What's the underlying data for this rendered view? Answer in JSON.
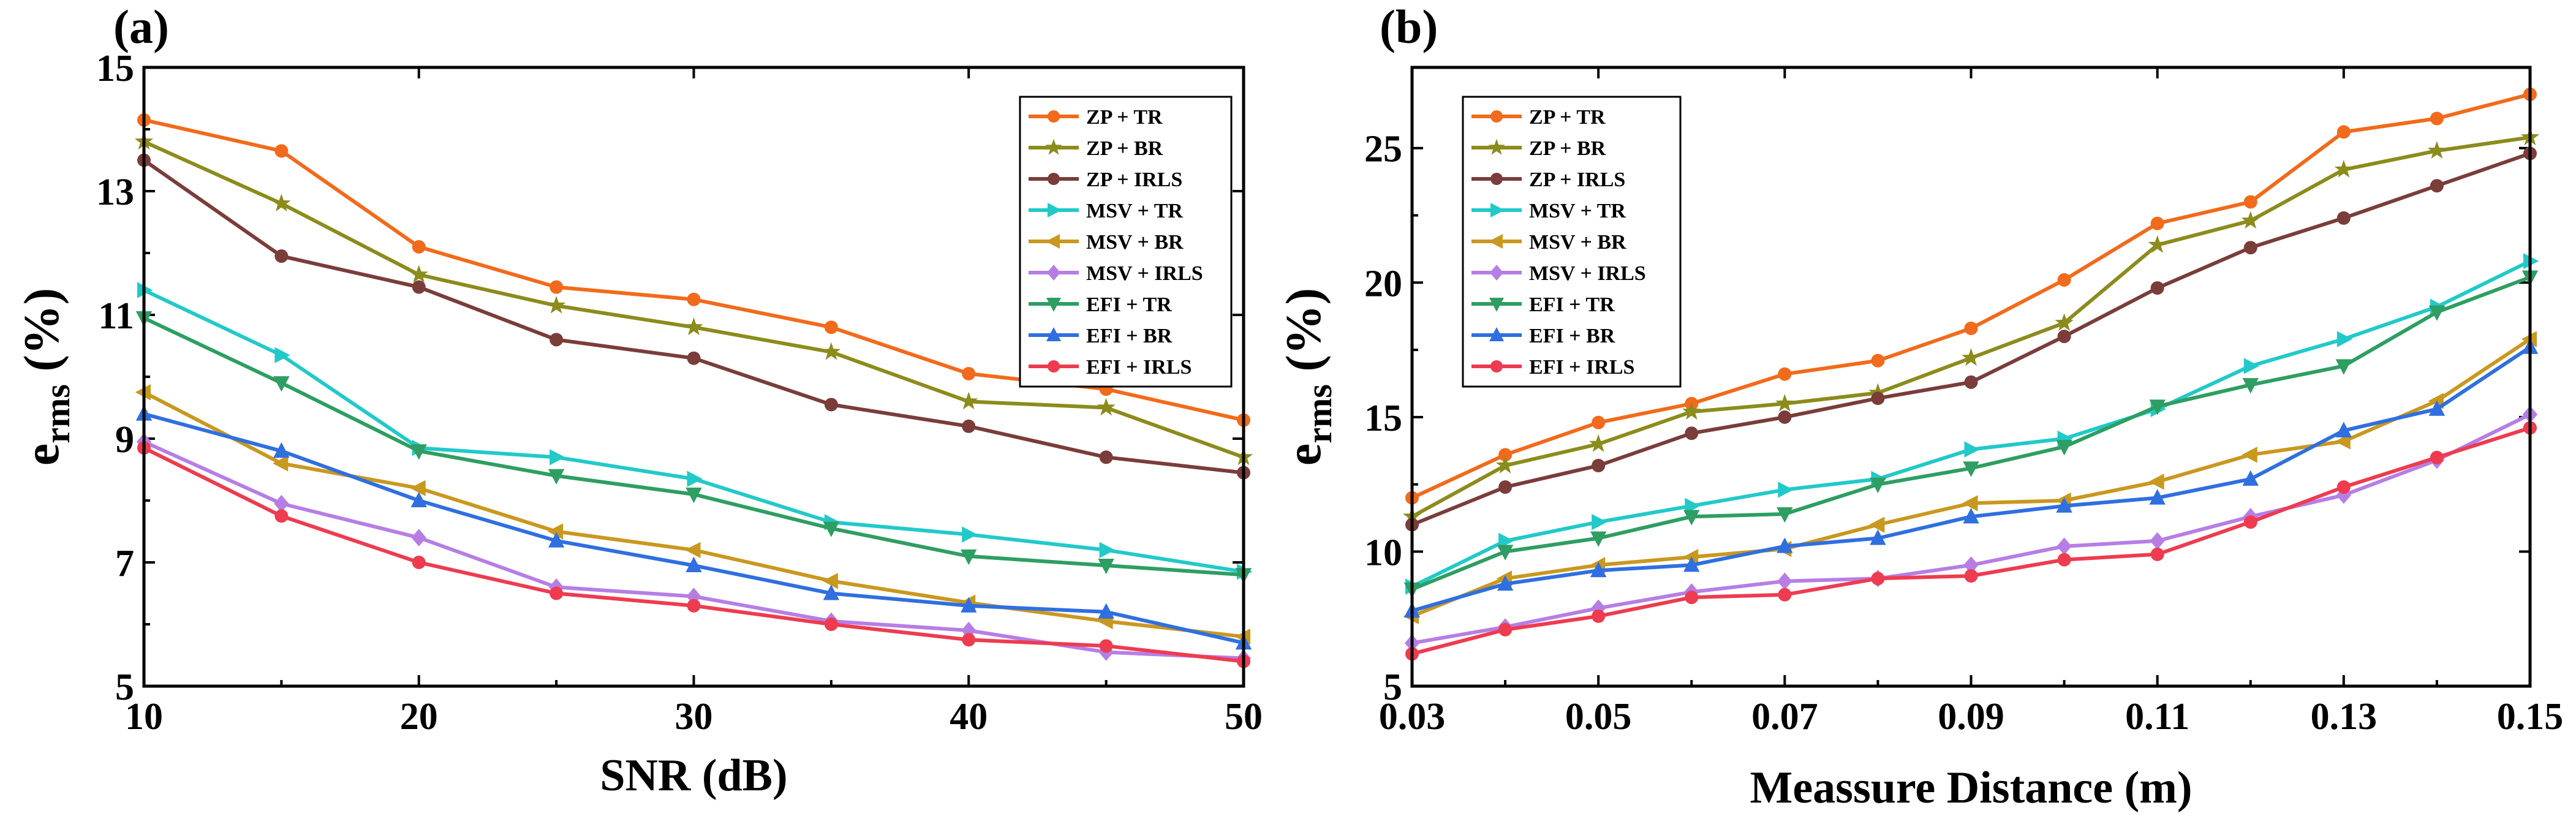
{
  "chart_data": [
    {
      "type": "line",
      "panel_label": "(a)",
      "xlabel": "SNR (dB)",
      "ylabel_main": "e",
      "ylabel_sub": "rms",
      "ylabel_unit": " (%)",
      "xlim": [
        10,
        50
      ],
      "ylim": [
        5,
        15
      ],
      "xticks": [
        "10",
        "20",
        "30",
        "40",
        "50"
      ],
      "xtick_values": [
        10,
        20,
        30,
        40,
        50
      ],
      "yticks": [
        "5",
        "7",
        "9",
        "11",
        "13",
        "15"
      ],
      "ytick_values": [
        5,
        7,
        9,
        11,
        13,
        15
      ],
      "x": [
        10,
        15,
        20,
        25,
        30,
        35,
        40,
        45,
        50
      ],
      "series": [
        {
          "name": "ZP + TR",
          "color": "#f26a1b",
          "marker": "circle",
          "values": [
            14.15,
            13.65,
            12.1,
            11.45,
            11.25,
            10.8,
            10.05,
            9.8,
            9.3
          ]
        },
        {
          "name": "ZP + BR",
          "color": "#8b8c1c",
          "marker": "star",
          "values": [
            13.8,
            12.8,
            11.65,
            11.15,
            10.8,
            10.4,
            9.6,
            9.5,
            8.7
          ]
        },
        {
          "name": "ZP + IRLS",
          "color": "#7a3d3a",
          "marker": "circle",
          "values": [
            13.5,
            11.95,
            11.45,
            10.6,
            10.3,
            9.55,
            9.2,
            8.7,
            8.45
          ]
        },
        {
          "name": "MSV + TR",
          "color": "#22c9c9",
          "marker": "tri-right",
          "values": [
            11.4,
            10.35,
            8.85,
            8.7,
            8.35,
            7.65,
            7.45,
            7.2,
            6.85
          ]
        },
        {
          "name": "MSV + BR",
          "color": "#c9981f",
          "marker": "tri-left",
          "values": [
            9.75,
            8.6,
            8.2,
            7.5,
            7.2,
            6.7,
            6.35,
            6.05,
            5.8
          ]
        },
        {
          "name": "MSV + IRLS",
          "color": "#b67ee5",
          "marker": "diamond",
          "values": [
            8.95,
            7.95,
            7.4,
            6.6,
            6.45,
            6.05,
            5.9,
            5.55,
            5.45
          ]
        },
        {
          "name": "EFI + TR",
          "color": "#2e9e62",
          "marker": "tri-down",
          "values": [
            10.95,
            9.9,
            8.8,
            8.4,
            8.1,
            7.55,
            7.1,
            6.95,
            6.8
          ]
        },
        {
          "name": "EFI + BR",
          "color": "#2f6fe0",
          "marker": "tri-up",
          "values": [
            9.4,
            8.8,
            8.0,
            7.35,
            6.95,
            6.5,
            6.3,
            6.2,
            5.7
          ]
        },
        {
          "name": "EFI + IRLS",
          "color": "#ee3b50",
          "marker": "circle",
          "values": [
            8.85,
            7.75,
            7.0,
            6.5,
            6.3,
            6.0,
            5.75,
            5.65,
            5.4
          ]
        }
      ]
    },
    {
      "type": "line",
      "panel_label": "(b)",
      "xlabel": "Meassure Distance (m)",
      "ylabel_main": "e",
      "ylabel_sub": "rms",
      "ylabel_unit": " (%)",
      "xlim": [
        0.03,
        0.15
      ],
      "ylim": [
        5,
        28
      ],
      "xticks": [
        "0.03",
        "0.05",
        "0.07",
        "0.09",
        "0.11",
        "0.13",
        "0.15"
      ],
      "xtick_values": [
        0.03,
        0.05,
        0.07,
        0.09,
        0.11,
        0.13,
        0.15
      ],
      "yticks": [
        "5",
        "10",
        "15",
        "20",
        "25"
      ],
      "ytick_values": [
        5,
        10,
        15,
        20,
        25
      ],
      "x": [
        0.03,
        0.04,
        0.05,
        0.06,
        0.07,
        0.08,
        0.09,
        0.1,
        0.11,
        0.12,
        0.13,
        0.14,
        0.15
      ],
      "series": [
        {
          "name": "ZP + TR",
          "color": "#f26a1b",
          "marker": "circle",
          "values": [
            12.0,
            13.6,
            14.8,
            15.5,
            16.6,
            17.1,
            18.3,
            20.1,
            22.2,
            23.0,
            25.6,
            26.1,
            27.0
          ]
        },
        {
          "name": "ZP + BR",
          "color": "#8b8c1c",
          "marker": "star",
          "values": [
            11.3,
            13.2,
            14.0,
            15.2,
            15.5,
            15.9,
            17.2,
            18.5,
            21.4,
            22.3,
            24.2,
            24.9,
            25.4
          ]
        },
        {
          "name": "ZP + IRLS",
          "color": "#7a3d3a",
          "marker": "circle",
          "values": [
            11.0,
            12.4,
            13.2,
            14.4,
            15.0,
            15.7,
            16.3,
            18.0,
            19.8,
            21.3,
            22.4,
            23.6,
            24.8
          ]
        },
        {
          "name": "MSV + TR",
          "color": "#22c9c9",
          "marker": "tri-right",
          "values": [
            8.7,
            10.4,
            11.1,
            11.7,
            12.3,
            12.7,
            13.8,
            14.2,
            15.3,
            16.9,
            17.9,
            19.1,
            20.8
          ]
        },
        {
          "name": "MSV + BR",
          "color": "#c9981f",
          "marker": "tri-left",
          "values": [
            7.6,
            9.0,
            9.5,
            9.8,
            10.1,
            11.0,
            11.8,
            11.9,
            12.6,
            13.6,
            14.1,
            15.6,
            17.9
          ]
        },
        {
          "name": "MSV + IRLS",
          "color": "#b67ee5",
          "marker": "diamond",
          "values": [
            6.6,
            7.2,
            7.9,
            8.5,
            8.9,
            9.0,
            9.5,
            10.2,
            10.4,
            11.3,
            12.1,
            13.4,
            15.1
          ]
        },
        {
          "name": "EFI + TR",
          "color": "#2e9e62",
          "marker": "tri-down",
          "values": [
            8.6,
            10.0,
            10.5,
            11.3,
            11.4,
            12.5,
            13.1,
            13.9,
            15.4,
            16.2,
            16.9,
            18.9,
            20.2
          ]
        },
        {
          "name": "EFI + BR",
          "color": "#2f6fe0",
          "marker": "tri-up",
          "values": [
            7.8,
            8.8,
            9.3,
            9.5,
            10.2,
            10.5,
            11.3,
            11.7,
            12.0,
            12.7,
            14.5,
            15.3,
            17.6
          ]
        },
        {
          "name": "EFI + IRLS",
          "color": "#ee3b50",
          "marker": "circle",
          "values": [
            6.2,
            7.1,
            7.6,
            8.3,
            8.4,
            9.0,
            9.1,
            9.7,
            9.9,
            11.1,
            12.4,
            13.5,
            14.6
          ]
        }
      ]
    }
  ]
}
